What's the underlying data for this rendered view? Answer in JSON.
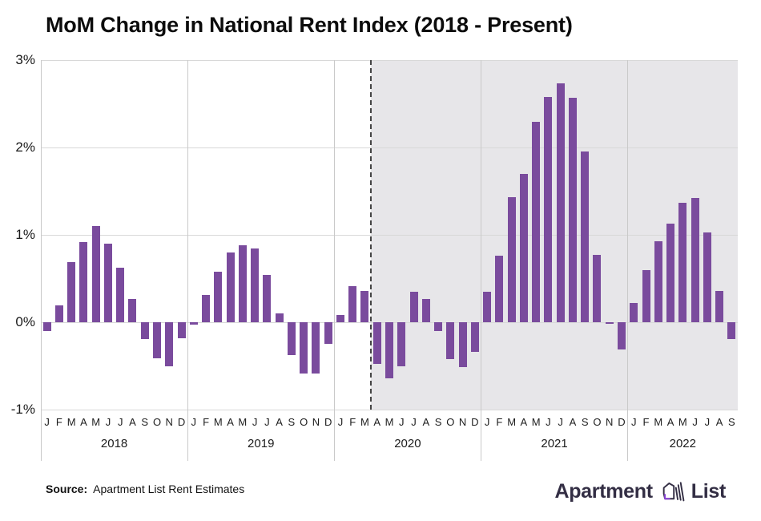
{
  "title": "MoM Change in National Rent Index (2018 - Present)",
  "source": {
    "label": "Source:",
    "text": "Apartment List Rent Estimates"
  },
  "logo": {
    "text_left": "Apartment",
    "text_right": "List",
    "dark_color": "#332e44",
    "accent_color": "#8a43d7"
  },
  "chart_data": {
    "type": "bar",
    "title": "MoM Change in National Rent Index (2018 - Present)",
    "xlabel": "",
    "ylabel": "",
    "ylim": [
      -1,
      3
    ],
    "y_tick_labels": [
      "3%",
      "2%",
      "1%",
      "0%",
      "-1%"
    ],
    "y_tick_values": [
      3,
      2,
      1,
      0,
      -1
    ],
    "grid": true,
    "legend": false,
    "bar_color": "#7a4b9d",
    "shaded_region": {
      "start_flat_index": 27,
      "note_color": "#e7e6e9"
    },
    "dashed_divider_flat_index": 27,
    "years": [
      {
        "year": "2018",
        "months": [
          "J",
          "F",
          "M",
          "A",
          "M",
          "J",
          "J",
          "A",
          "S",
          "O",
          "N",
          "D"
        ],
        "values": [
          -0.1,
          0.19,
          0.69,
          0.92,
          1.1,
          0.9,
          0.62,
          0.27,
          -0.19,
          -0.41,
          -0.5,
          -0.18
        ]
      },
      {
        "year": "2019",
        "months": [
          "J",
          "F",
          "M",
          "A",
          "M",
          "J",
          "J",
          "A",
          "S",
          "O",
          "N",
          "D"
        ],
        "values": [
          -0.03,
          0.31,
          0.58,
          0.8,
          0.88,
          0.84,
          0.54,
          0.1,
          -0.38,
          -0.59,
          -0.59,
          -0.25
        ]
      },
      {
        "year": "2020",
        "months": [
          "J",
          "F",
          "M",
          "A",
          "M",
          "J",
          "J",
          "A",
          "S",
          "O",
          "N",
          "D"
        ],
        "values": [
          0.08,
          0.41,
          0.36,
          -0.48,
          -0.64,
          -0.5,
          0.35,
          0.27,
          -0.1,
          -0.42,
          -0.51,
          -0.34
        ]
      },
      {
        "year": "2021",
        "months": [
          "J",
          "F",
          "M",
          "A",
          "M",
          "J",
          "J",
          "A",
          "S",
          "O",
          "N",
          "D"
        ],
        "values": [
          0.35,
          0.76,
          1.43,
          1.7,
          2.29,
          2.58,
          2.73,
          2.57,
          1.95,
          0.77,
          -0.02,
          -0.31
        ]
      },
      {
        "year": "2022",
        "months": [
          "J",
          "F",
          "M",
          "A",
          "M",
          "J",
          "J",
          "A",
          "S"
        ],
        "values": [
          0.22,
          0.6,
          0.93,
          1.13,
          1.37,
          1.42,
          1.03,
          0.36,
          -0.19
        ]
      }
    ]
  }
}
